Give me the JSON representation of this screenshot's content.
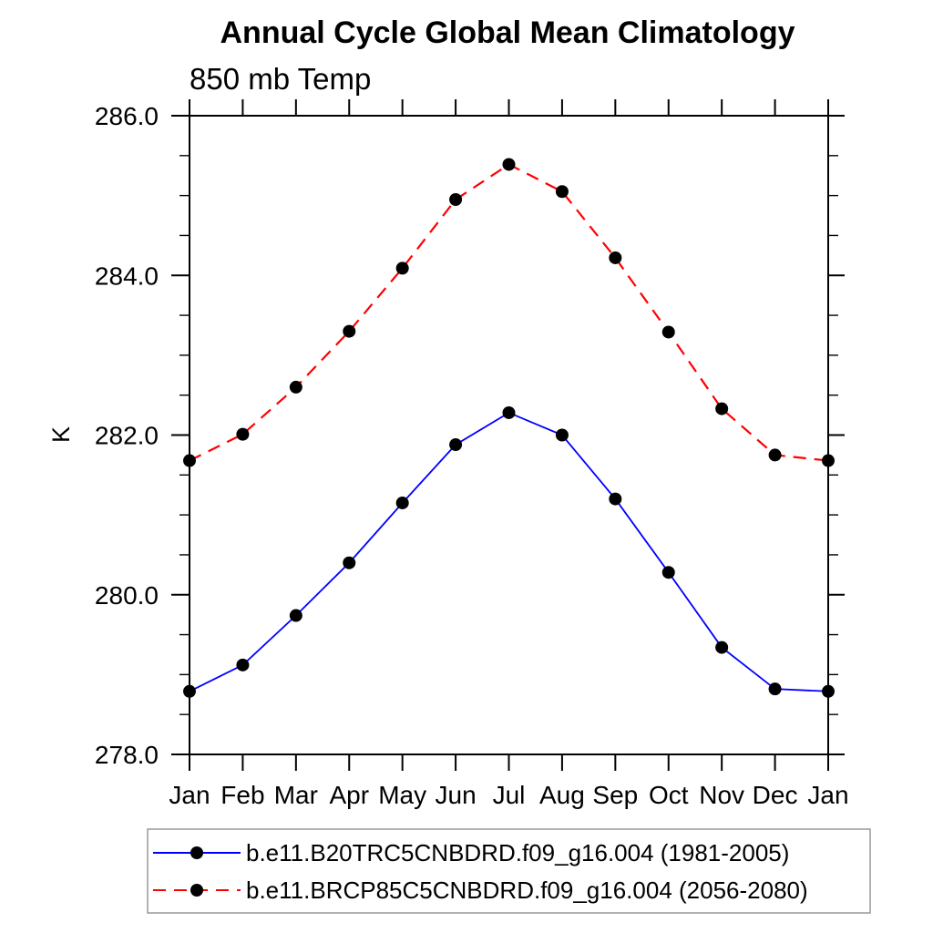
{
  "chart": {
    "title": "Annual Cycle Global Mean Climatology",
    "subtitle": "850 mb Temp",
    "ylabel": "K"
  },
  "chart_data": {
    "type": "line",
    "title": "Annual Cycle Global Mean Climatology",
    "subtitle": "850 mb Temp",
    "xlabel": "",
    "ylabel": "K",
    "categories": [
      "Jan",
      "Feb",
      "Mar",
      "Apr",
      "May",
      "Jun",
      "Jul",
      "Aug",
      "Sep",
      "Oct",
      "Nov",
      "Dec",
      "Jan"
    ],
    "ylim": [
      278.0,
      286.0
    ],
    "y_major_tick_step": 2.0,
    "y_minor_tick_step": 0.5,
    "y_tick_labels": [
      "278.0",
      "280.0",
      "282.0",
      "284.0",
      "286.0"
    ],
    "grid": false,
    "frame": "box-with-outward-ticks",
    "legend_position": "bottom",
    "marker": "filled-circle",
    "marker_color": "#000000",
    "series": [
      {
        "name": "b.e11.B20TRC5CNBDRD.f09_g16.004 (1981-2005)",
        "color": "#0000ff",
        "line_style": "solid",
        "values": [
          278.79,
          279.12,
          279.74,
          280.4,
          281.15,
          281.88,
          282.28,
          282.0,
          281.2,
          280.28,
          279.34,
          278.82,
          278.79
        ]
      },
      {
        "name": "b.e11.BRCP85C5CNBDRD.f09_g16.004 (2056-2080)",
        "color": "#ff0000",
        "line_style": "dashed",
        "values": [
          281.68,
          282.01,
          282.6,
          283.3,
          284.09,
          284.95,
          285.39,
          285.05,
          284.22,
          283.29,
          282.33,
          281.75,
          281.68
        ]
      }
    ]
  }
}
